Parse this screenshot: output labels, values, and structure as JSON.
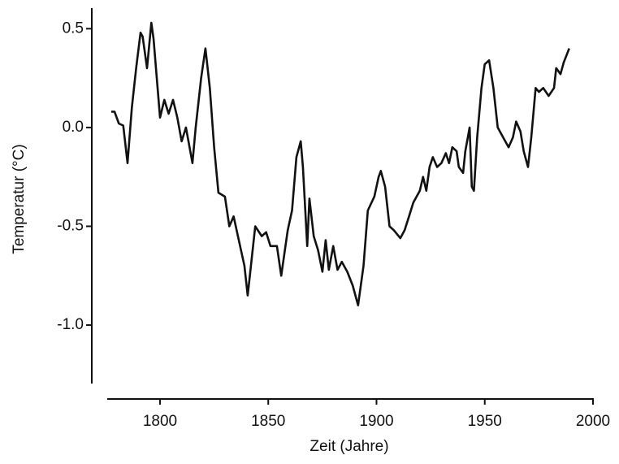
{
  "chart_data": {
    "type": "line",
    "xlabel": "Zeit (Jahre)",
    "ylabel": "Temperatur (°C)",
    "x": [
      1777.5,
      1779,
      1781,
      1783,
      1785,
      1787,
      1789,
      1791,
      1792,
      1794,
      1796,
      1797,
      1800,
      1802,
      1804,
      1806,
      1808,
      1810,
      1812,
      1815,
      1816.5,
      1819,
      1821,
      1823,
      1825,
      1827,
      1830,
      1832,
      1834,
      1836,
      1839,
      1840.5,
      1842,
      1844,
      1847,
      1849,
      1851,
      1854,
      1856,
      1859,
      1861,
      1863,
      1865,
      1866,
      1868,
      1869,
      1871,
      1873,
      1875,
      1876.5,
      1878,
      1880,
      1882,
      1884,
      1886.5,
      1889,
      1891.5,
      1894,
      1896,
      1899,
      1901,
      1902,
      1904,
      1906,
      1908,
      1911,
      1913,
      1915,
      1917,
      1920,
      1921.5,
      1923,
      1924.5,
      1926,
      1928,
      1930,
      1932,
      1933.5,
      1935,
      1937,
      1938,
      1940,
      1941,
      1943,
      1944,
      1945,
      1946.5,
      1948.5,
      1950,
      1952,
      1954,
      1956,
      1958.5,
      1961,
      1963,
      1964.5,
      1966.5,
      1968,
      1970,
      1971.5,
      1973.5,
      1975,
      1977,
      1979.5,
      1982,
      1983,
      1985,
      1986.5,
      1989
    ],
    "series": [
      {
        "name": "Temperatur",
        "color": "#111111",
        "values": [
          0.08,
          0.08,
          0.02,
          0.01,
          -0.18,
          0.1,
          0.3,
          0.48,
          0.46,
          0.3,
          0.53,
          0.45,
          0.05,
          0.14,
          0.07,
          0.14,
          0.05,
          -0.07,
          0.0,
          -0.18,
          0.0,
          0.25,
          0.4,
          0.2,
          -0.1,
          -0.33,
          -0.35,
          -0.5,
          -0.45,
          -0.55,
          -0.7,
          -0.85,
          -0.7,
          -0.5,
          -0.55,
          -0.53,
          -0.6,
          -0.6,
          -0.75,
          -0.52,
          -0.42,
          -0.15,
          -0.07,
          -0.2,
          -0.6,
          -0.36,
          -0.55,
          -0.62,
          -0.73,
          -0.57,
          -0.72,
          -0.6,
          -0.72,
          -0.68,
          -0.73,
          -0.8,
          -0.9,
          -0.7,
          -0.42,
          -0.35,
          -0.25,
          -0.22,
          -0.3,
          -0.5,
          -0.52,
          -0.56,
          -0.52,
          -0.45,
          -0.38,
          -0.32,
          -0.25,
          -0.32,
          -0.2,
          -0.15,
          -0.2,
          -0.18,
          -0.13,
          -0.18,
          -0.1,
          -0.12,
          -0.2,
          -0.23,
          -0.12,
          0.0,
          -0.3,
          -0.32,
          -0.05,
          0.2,
          0.32,
          0.34,
          0.2,
          0.0,
          -0.05,
          -0.1,
          -0.05,
          0.03,
          -0.02,
          -0.12,
          -0.2,
          -0.05,
          0.2,
          0.18,
          0.2,
          0.16,
          0.2,
          0.3,
          0.27,
          0.33,
          0.4
        ]
      }
    ],
    "xlim": [
      1776,
      2000
    ],
    "xticks": [
      1800,
      1850,
      1900,
      1950,
      2000
    ],
    "ylim": [
      -1.3,
      0.6
    ],
    "yticks": [
      0.5,
      {
        "value": 0,
        "label": "0.0"
      },
      -0.5,
      {
        "value": -1,
        "label": "-1.0"
      }
    ]
  }
}
